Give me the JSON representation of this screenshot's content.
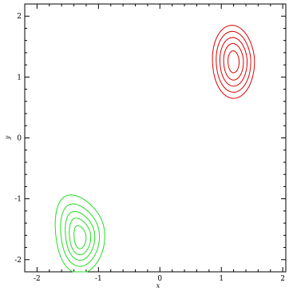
{
  "chart_data": {
    "type": "contour",
    "title": "",
    "xlabel": "x",
    "ylabel": "y",
    "xlim": [
      -2.2,
      2.05
    ],
    "ylim": [
      -2.2,
      2.2
    ],
    "xticks": [
      -2,
      -1,
      0,
      1,
      2
    ],
    "yticks": [
      -2,
      -1,
      0,
      1,
      2
    ],
    "x_tick_labels": [
      "-2",
      "-1",
      "0",
      "1",
      "2"
    ],
    "y_tick_labels": [
      "-2",
      "-1",
      "0",
      "1",
      "2"
    ],
    "grid": false,
    "series": [
      {
        "color": "#dd0000",
        "center": [
          1.2,
          1.25
        ],
        "levels": [
          {
            "rx": 0.34,
            "ry": 0.6
          },
          {
            "rx": 0.28,
            "ry": 0.5
          },
          {
            "rx": 0.22,
            "ry": 0.4
          },
          {
            "rx": 0.16,
            "ry": 0.3
          },
          {
            "rx": 0.09,
            "ry": 0.18
          }
        ]
      },
      {
        "color": "#22dd22",
        "center": [
          -1.3,
          -1.65
        ],
        "skew_up_left": true,
        "levels": [
          {
            "rx": 0.37,
            "ry": 0.58
          },
          {
            "rx": 0.29,
            "ry": 0.46
          },
          {
            "rx": 0.22,
            "ry": 0.36
          },
          {
            "rx": 0.16,
            "ry": 0.27
          },
          {
            "rx": 0.09,
            "ry": 0.17
          }
        ]
      }
    ]
  }
}
